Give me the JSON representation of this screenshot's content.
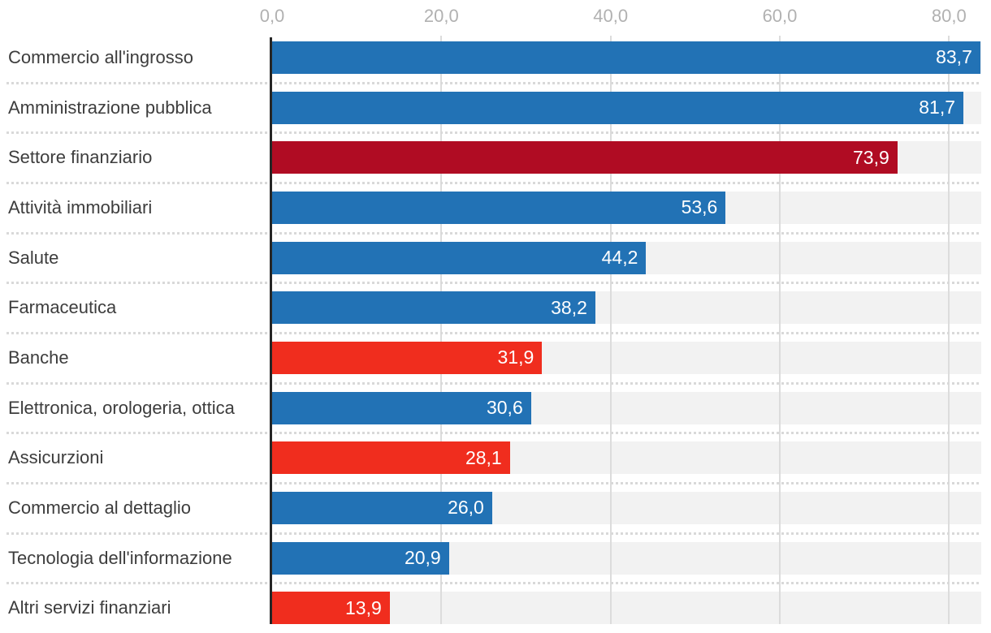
{
  "chart_data": {
    "type": "bar",
    "orientation": "horizontal",
    "title": "",
    "categories": [
      "Commercio all'ingrosso",
      "Amministrazione pubblica",
      "Settore finanziario",
      "Attività immobiliari",
      "Salute",
      "Farmaceutica",
      "Banche",
      "Elettronica, orologeria, ottica",
      "Assicurzioni",
      "Commercio al dettaglio",
      "Tecnologia dell'informazione",
      "Altri servizi finanziari"
    ],
    "values": [
      83.7,
      81.7,
      73.9,
      53.6,
      44.2,
      38.2,
      31.9,
      30.6,
      28.1,
      26.0,
      20.9,
      13.9
    ],
    "value_labels": [
      "83,7",
      "81,7",
      "73,9",
      "53,6",
      "44,2",
      "38,2",
      "31,9",
      "30,6",
      "28,1",
      "26,0",
      "20,9",
      "13,9"
    ],
    "bar_color_keys": [
      "blue",
      "blue",
      "darkred",
      "blue",
      "blue",
      "blue",
      "red",
      "blue",
      "red",
      "blue",
      "blue",
      "red"
    ],
    "x_axis": {
      "position": "top",
      "min": 0,
      "max": 83.8,
      "ticks": [
        {
          "value": 0,
          "label": "0,0"
        },
        {
          "value": 20,
          "label": "20,0"
        },
        {
          "value": 40,
          "label": "40,0"
        },
        {
          "value": 60,
          "label": "60,0"
        },
        {
          "value": 80,
          "label": "80,0"
        }
      ]
    },
    "grid": true,
    "legend": false,
    "value_labels_inside_bars": true
  },
  "palette": {
    "blue": "#2272b5",
    "red": "#f02d1e",
    "darkred": "#b00c23",
    "track": "#f2f2f2",
    "gridline": "#dcdcdc",
    "separator_dots": "#d9d9d9",
    "axis_line": "#262626",
    "tick_text": "#b1b1b1",
    "category_text": "#3d3d3d",
    "value_text": "#ffffff"
  }
}
